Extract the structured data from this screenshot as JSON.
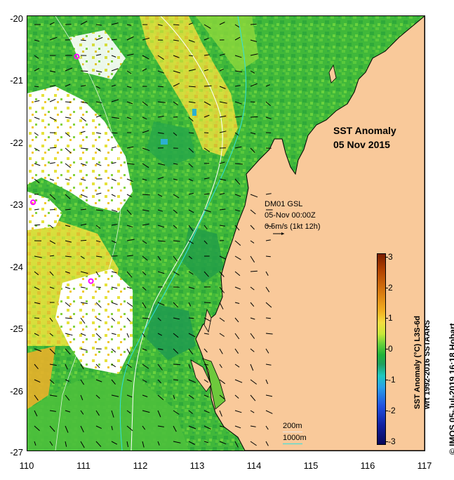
{
  "map": {
    "title": "SST Anomaly",
    "date": "05 Nov 2015",
    "lon_range": [
      110,
      117
    ],
    "lat_range": [
      -27,
      -20
    ],
    "x_ticks": [
      "110",
      "111",
      "112",
      "113",
      "114",
      "115",
      "116",
      "117"
    ],
    "y_ticks": [
      "-20",
      "-21",
      "-22",
      "-23",
      "-24",
      "-25",
      "-26",
      "-27"
    ],
    "land_color": "#f9c99a",
    "ocean_base_color": "#3fb63a",
    "vector_annotation": {
      "line1": "DM01 GSL",
      "line2": "05-Nov 00:00Z",
      "line3": "0.5m/s (1kt 12h)"
    },
    "contours": {
      "shallow_label": "200m",
      "deep_label": "1000m",
      "shallow_color": "#ffffff",
      "deep_color": "#30e0e0"
    },
    "markers": {
      "color": "#ff00ff",
      "points": [
        {
          "lon": 110.87,
          "lat": -20.65
        },
        {
          "lon": 110.1,
          "lat": -23.0
        },
        {
          "lon": 111.12,
          "lat": -24.27
        }
      ]
    },
    "colorbar": {
      "ticks": [
        "3",
        "2",
        "1",
        "0",
        "-1",
        "-2",
        "-3"
      ],
      "title_line1": "SST Anomaly (°C) L3S-6d",
      "title_line2": "wrt 1992-2016 SSTAARS",
      "range": [
        -3,
        3
      ]
    },
    "copyright": "© IMOS 05-Jul-2019 16:18 Hobart"
  }
}
